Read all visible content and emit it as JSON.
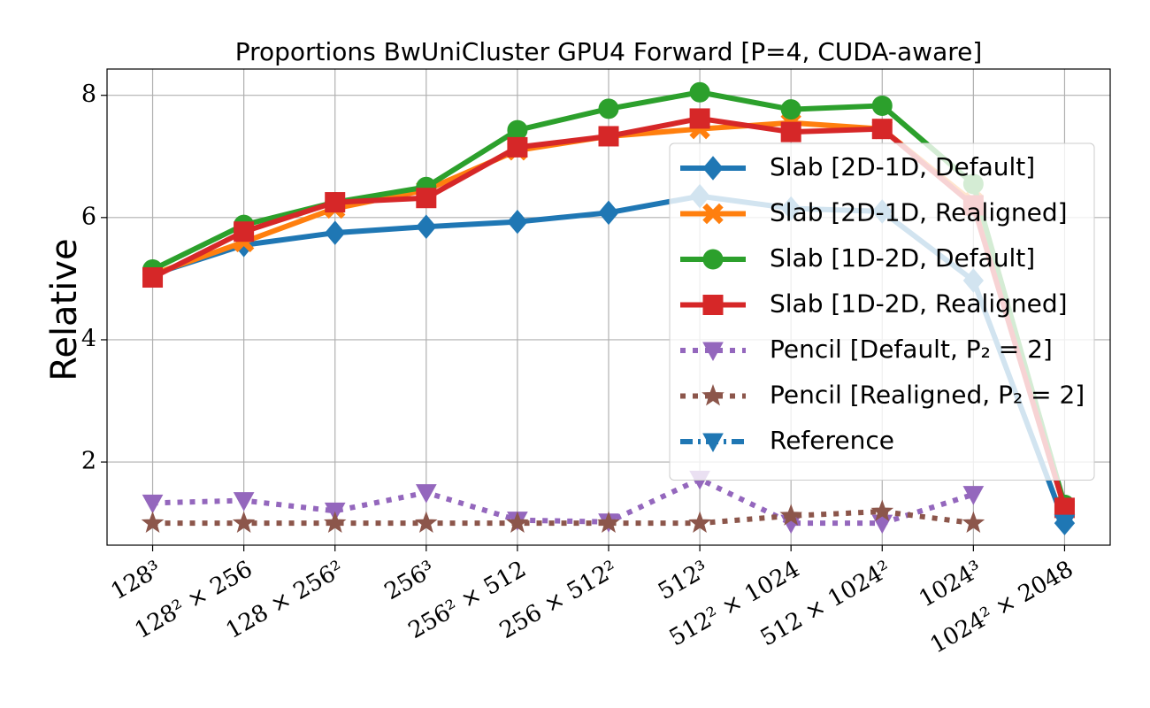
{
  "chart_data": {
    "type": "line",
    "title": "Proportions BwUniCluster GPU4 Forward [P=4, CUDA-aware]",
    "y_label": "Relative",
    "categories": [
      "128³",
      "128² × 256",
      "128 × 256²",
      "256³",
      "256² × 512",
      "256 × 512²",
      "512³",
      "512² × 1024",
      "512 × 1024²",
      "1024³",
      "1024² × 2048"
    ],
    "ylim": [
      0.64,
      8.43
    ],
    "yticks": [
      2,
      4,
      6,
      8
    ],
    "grid": true,
    "legend": "upper right",
    "series": [
      {
        "name": "Slab [2D-1D, Default]",
        "color": "#1f77b4",
        "marker": "diamond",
        "linestyle": "solid",
        "values": [
          5.07,
          5.55,
          5.75,
          5.85,
          5.93,
          6.08,
          6.35,
          6.15,
          6.1,
          4.97,
          1.0
        ]
      },
      {
        "name": "Slab [2D-1D, Realigned]",
        "color": "#ff7f0e",
        "marker": "x",
        "linestyle": "solid",
        "values": [
          5.07,
          5.6,
          6.15,
          6.45,
          7.1,
          7.33,
          7.45,
          7.55,
          7.45,
          6.25,
          1.25
        ]
      },
      {
        "name": "Slab [1D-2D, Default]",
        "color": "#2ca02c",
        "marker": "circle",
        "linestyle": "solid",
        "values": [
          5.15,
          5.88,
          6.25,
          6.5,
          7.43,
          7.78,
          8.05,
          7.77,
          7.83,
          6.55,
          1.3
        ]
      },
      {
        "name": "Slab [1D-2D, Realigned]",
        "color": "#d62728",
        "marker": "square",
        "linestyle": "solid",
        "values": [
          5.02,
          5.77,
          6.25,
          6.32,
          7.15,
          7.33,
          7.62,
          7.4,
          7.45,
          6.2,
          1.25
        ]
      },
      {
        "name": "Pencil [Default, P₂ = 2]",
        "color": "#9467bd",
        "marker": "triangle-down",
        "linestyle": "dotted",
        "values": [
          1.33,
          1.37,
          1.2,
          1.5,
          1.05,
          1.02,
          1.72,
          1.0,
          1.0,
          1.47,
          null
        ]
      },
      {
        "name": "Pencil [Realigned, P₂ = 2]",
        "color": "#8c564b",
        "marker": "star",
        "linestyle": "dotted",
        "values": [
          1.0,
          1.0,
          1.0,
          1.0,
          1.0,
          1.0,
          1.0,
          1.12,
          1.19,
          1.0,
          null
        ]
      },
      {
        "name": "Reference",
        "color": "#1f77b4",
        "marker": "triangle-down",
        "linestyle": "dashdot",
        "values": [
          null,
          null,
          null,
          null,
          null,
          null,
          null,
          null,
          null,
          null,
          1.0
        ]
      }
    ]
  }
}
